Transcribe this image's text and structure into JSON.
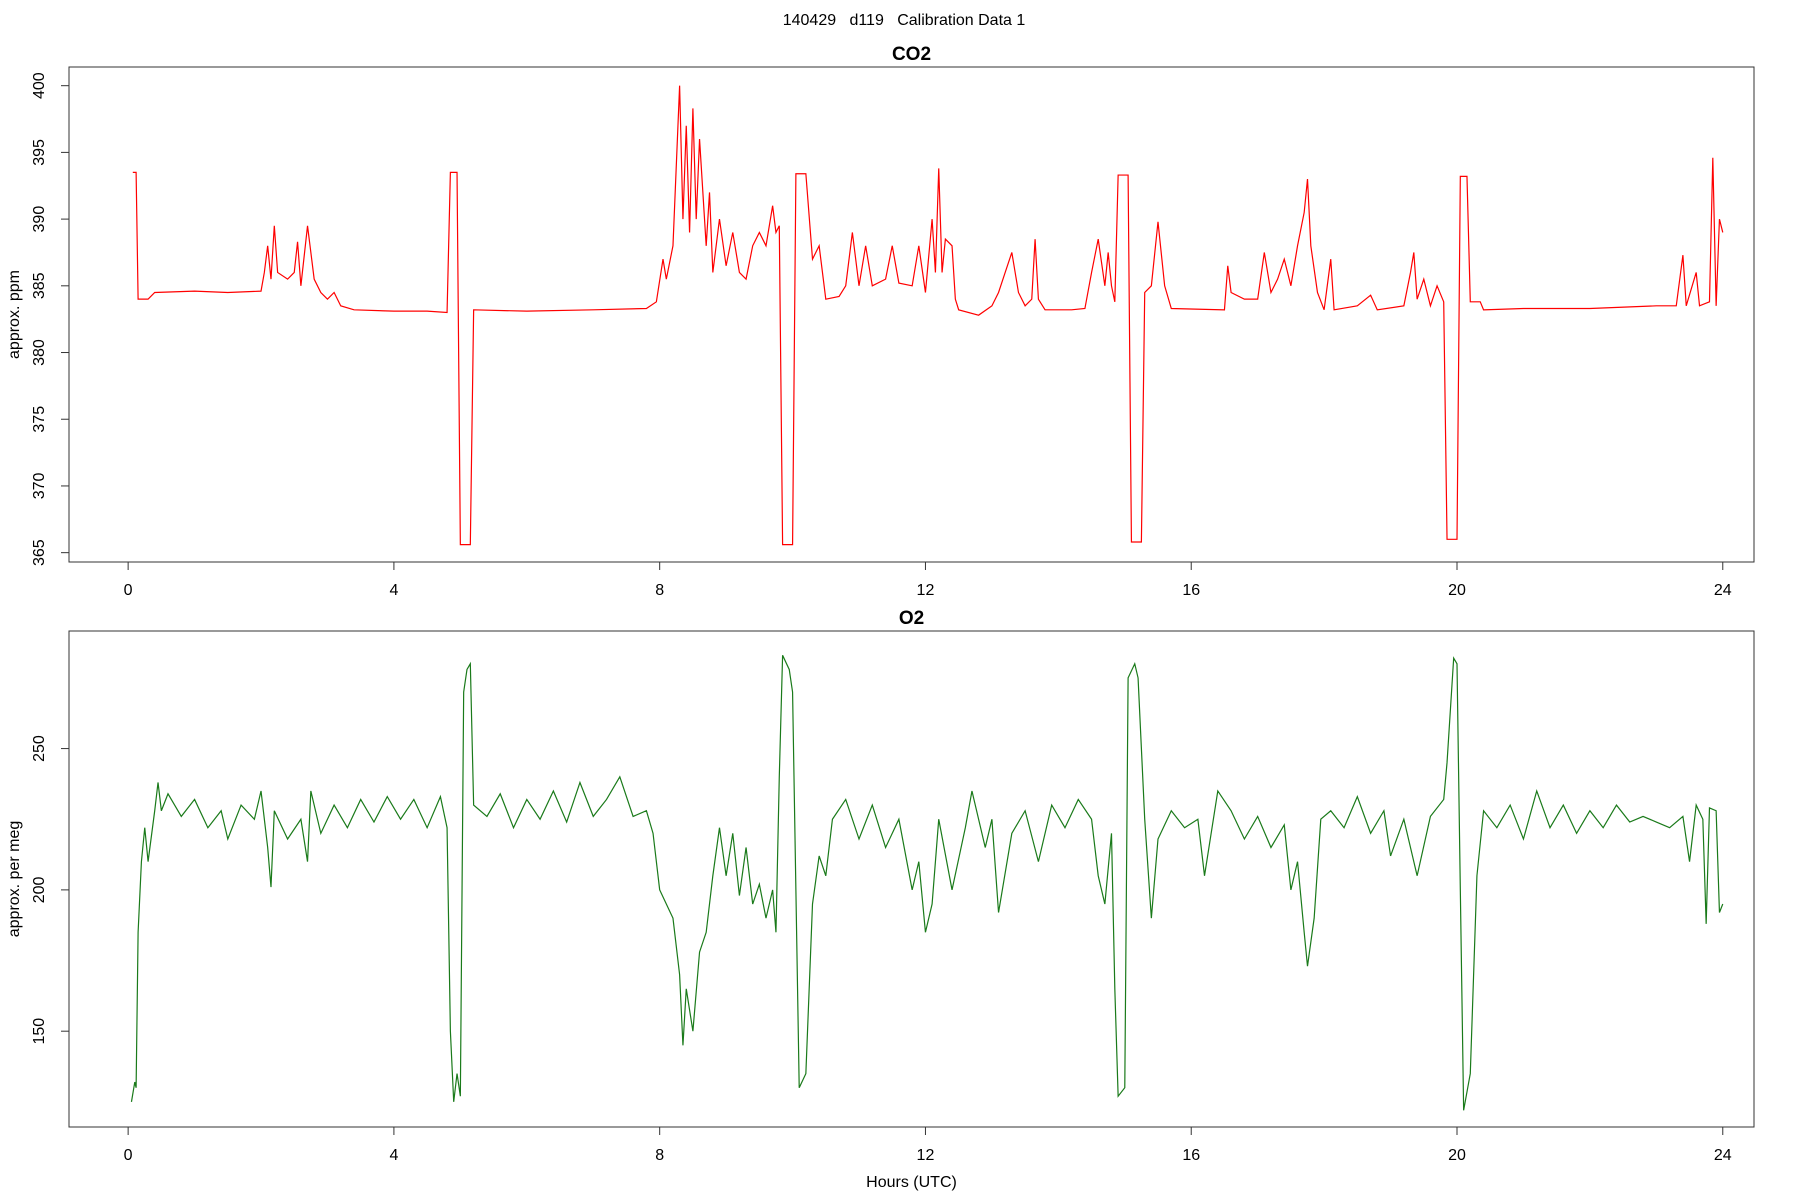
{
  "title": "140429   d119   Calibration Data 1",
  "chart_data": [
    {
      "type": "line",
      "title": "CO2",
      "ylabel": "approx. ppm",
      "color": "#ff0000",
      "xlim": [
        -0.89,
        24.47
      ],
      "xticks": [
        0,
        4,
        8,
        12,
        16,
        20,
        24
      ],
      "ylim": [
        364.3,
        401.4
      ],
      "yticks": [
        365,
        370,
        375,
        380,
        385,
        390,
        395,
        400
      ],
      "x": [
        0.07,
        0.12,
        0.15,
        0.3,
        0.4,
        1.0,
        1.5,
        2.0,
        2.05,
        2.1,
        2.15,
        2.2,
        2.25,
        2.4,
        2.5,
        2.55,
        2.6,
        2.7,
        2.8,
        2.9,
        3.0,
        3.1,
        3.2,
        3.4,
        4.0,
        4.5,
        4.8,
        4.85,
        4.95,
        5.0,
        5.15,
        5.2,
        6,
        7,
        7.8,
        7.95,
        8.05,
        8.1,
        8.2,
        8.3,
        8.35,
        8.4,
        8.45,
        8.5,
        8.55,
        8.6,
        8.7,
        8.75,
        8.8,
        8.9,
        9.0,
        9.1,
        9.2,
        9.3,
        9.4,
        9.5,
        9.6,
        9.7,
        9.75,
        9.8,
        9.85,
        10.0,
        10.05,
        10.2,
        10.3,
        10.4,
        10.5,
        10.7,
        10.8,
        10.9,
        11.0,
        11.1,
        11.2,
        11.4,
        11.5,
        11.6,
        11.8,
        11.9,
        12.0,
        12.1,
        12.15,
        12.2,
        12.25,
        12.3,
        12.4,
        12.45,
        12.5,
        12.8,
        13.0,
        13.1,
        13.2,
        13.3,
        13.4,
        13.5,
        13.6,
        13.65,
        13.7,
        13.8,
        14.2,
        14.4,
        14.5,
        14.6,
        14.7,
        14.75,
        14.8,
        14.85,
        14.9,
        15.05,
        15.1,
        15.25,
        15.3,
        15.4,
        15.5,
        15.6,
        15.7,
        16.5,
        16.55,
        16.6,
        16.8,
        17.0,
        17.1,
        17.2,
        17.3,
        17.4,
        17.5,
        17.6,
        17.7,
        17.75,
        17.8,
        17.9,
        18.0,
        18.1,
        18.15,
        18.5,
        18.7,
        18.8,
        19.2,
        19.3,
        19.35,
        19.4,
        19.5,
        19.6,
        19.7,
        19.8,
        19.85,
        20.0,
        20.05,
        20.15,
        20.2,
        20.35,
        20.4,
        21,
        22,
        23,
        23.3,
        23.4,
        23.45,
        23.6,
        23.65,
        23.8,
        23.85,
        23.9,
        23.95,
        24.0
      ],
      "values": [
        393.5,
        393.5,
        384,
        384,
        384.5,
        384.6,
        384.5,
        384.6,
        386,
        388,
        385.5,
        389.5,
        386,
        385.5,
        386,
        388.3,
        385,
        389.5,
        385.5,
        384.5,
        384,
        384.5,
        383.5,
        383.2,
        383.1,
        383.1,
        383,
        393.5,
        393.5,
        365.6,
        365.6,
        383.2,
        383.1,
        383.2,
        383.3,
        383.8,
        387,
        385.5,
        388,
        400,
        390,
        397,
        389,
        398.3,
        390,
        396,
        388,
        392,
        386,
        390,
        386.5,
        389,
        386,
        385.5,
        388,
        389,
        388,
        391,
        389,
        389.5,
        365.6,
        365.6,
        393.4,
        393.4,
        387,
        388,
        384,
        384.2,
        385,
        389,
        385,
        388,
        385,
        385.5,
        388,
        385.2,
        385,
        388,
        384.5,
        390,
        386,
        393.8,
        386,
        388.5,
        388,
        384,
        383.2,
        382.8,
        383.5,
        384.5,
        386,
        387.5,
        384.5,
        383.5,
        384,
        388.5,
        384,
        383.2,
        383.2,
        383.3,
        386,
        388.5,
        385,
        387.5,
        385,
        383.8,
        393.3,
        393.3,
        365.8,
        365.8,
        384.5,
        385,
        389.8,
        385,
        383.3,
        383.2,
        386.5,
        384.5,
        384,
        384,
        387.5,
        384.5,
        385.5,
        387,
        385,
        388,
        390.5,
        393,
        388,
        384.5,
        383.2,
        387,
        383.2,
        383.5,
        384.3,
        383.2,
        383.5,
        386,
        387.5,
        384,
        385.5,
        383.5,
        385,
        383.8,
        366,
        366,
        393.2,
        393.2,
        383.8,
        383.8,
        383.2,
        383.3,
        383.3,
        383.5,
        383.5,
        387.3,
        383.5,
        386,
        383.5,
        383.8,
        394.6,
        383.5,
        390,
        389
      ]
    },
    {
      "type": "line",
      "title": "O2",
      "ylabel": "approx. per meg",
      "xlabel": "Hours (UTC)",
      "color": "#1a7a1a",
      "xlim": [
        -0.89,
        24.47
      ],
      "xticks": [
        0,
        4,
        8,
        12,
        16,
        20,
        24
      ],
      "ylim": [
        116.1,
        291.6
      ],
      "yticks": [
        150,
        200,
        250
      ],
      "x": [
        0.05,
        0.1,
        0.12,
        0.15,
        0.2,
        0.25,
        0.3,
        0.4,
        0.45,
        0.5,
        0.6,
        0.8,
        1.0,
        1.2,
        1.4,
        1.5,
        1.7,
        1.9,
        2.0,
        2.1,
        2.15,
        2.2,
        2.4,
        2.6,
        2.7,
        2.75,
        2.9,
        3.1,
        3.3,
        3.5,
        3.7,
        3.9,
        4.1,
        4.3,
        4.5,
        4.7,
        4.8,
        4.85,
        4.9,
        4.95,
        5.0,
        5.05,
        5.1,
        5.15,
        5.2,
        5.4,
        5.6,
        5.8,
        6.0,
        6.2,
        6.4,
        6.6,
        6.8,
        7.0,
        7.2,
        7.4,
        7.6,
        7.8,
        7.9,
        8.0,
        8.1,
        8.2,
        8.3,
        8.35,
        8.4,
        8.5,
        8.6,
        8.7,
        8.8,
        8.9,
        9.0,
        9.1,
        9.2,
        9.3,
        9.4,
        9.5,
        9.6,
        9.7,
        9.75,
        9.8,
        9.85,
        9.95,
        10.0,
        10.05,
        10.1,
        10.2,
        10.3,
        10.4,
        10.5,
        10.6,
        10.8,
        11.0,
        11.2,
        11.4,
        11.6,
        11.8,
        11.9,
        12.0,
        12.1,
        12.2,
        12.4,
        12.6,
        12.7,
        12.9,
        13.0,
        13.1,
        13.3,
        13.5,
        13.7,
        13.9,
        14.1,
        14.3,
        14.5,
        14.6,
        14.7,
        14.8,
        14.85,
        14.9,
        15.0,
        15.05,
        15.15,
        15.2,
        15.3,
        15.4,
        15.5,
        15.7,
        15.9,
        16.1,
        16.2,
        16.4,
        16.6,
        16.8,
        17.0,
        17.2,
        17.4,
        17.5,
        17.6,
        17.7,
        17.75,
        17.85,
        17.95,
        18.1,
        18.3,
        18.5,
        18.7,
        18.9,
        19.0,
        19.2,
        19.4,
        19.6,
        19.8,
        19.85,
        19.95,
        20.0,
        20.05,
        20.1,
        20.2,
        20.3,
        20.4,
        20.6,
        20.8,
        21.0,
        21.2,
        21.4,
        21.6,
        21.8,
        22.0,
        22.2,
        22.4,
        22.6,
        22.8,
        23.0,
        23.2,
        23.4,
        23.5,
        23.6,
        23.7,
        23.75,
        23.8,
        23.9,
        23.95,
        24.0
      ],
      "values": [
        125,
        132,
        130,
        185,
        210,
        222,
        210,
        228,
        238,
        228,
        234,
        226,
        232,
        222,
        228,
        218,
        230,
        225,
        235,
        215,
        201,
        228,
        218,
        225,
        210,
        235,
        220,
        230,
        222,
        232,
        224,
        233,
        225,
        232,
        222,
        233,
        222,
        150,
        125,
        135,
        127,
        270,
        278,
        280,
        230,
        226,
        234,
        222,
        232,
        225,
        235,
        224,
        238,
        226,
        232,
        240,
        226,
        228,
        220,
        200,
        195,
        190,
        170,
        145,
        165,
        150,
        178,
        185,
        205,
        222,
        205,
        220,
        198,
        215,
        195,
        202,
        190,
        200,
        185,
        240,
        283,
        278,
        270,
        200,
        130,
        135,
        195,
        212,
        205,
        225,
        232,
        218,
        230,
        215,
        225,
        200,
        210,
        185,
        195,
        225,
        200,
        222,
        235,
        215,
        225,
        192,
        220,
        228,
        210,
        230,
        222,
        232,
        225,
        205,
        195,
        220,
        165,
        127,
        130,
        275,
        280,
        275,
        225,
        190,
        218,
        228,
        222,
        225,
        205,
        235,
        228,
        218,
        226,
        215,
        223,
        200,
        210,
        185,
        173,
        190,
        225,
        228,
        222,
        233,
        220,
        228,
        212,
        225,
        205,
        226,
        232,
        245,
        282,
        280,
        200,
        122,
        135,
        205,
        228,
        222,
        230,
        218,
        235,
        222,
        230,
        220,
        228,
        222,
        230,
        224,
        226,
        224,
        222,
        226,
        210,
        230,
        225,
        188,
        229,
        228,
        192,
        195
      ]
    }
  ]
}
